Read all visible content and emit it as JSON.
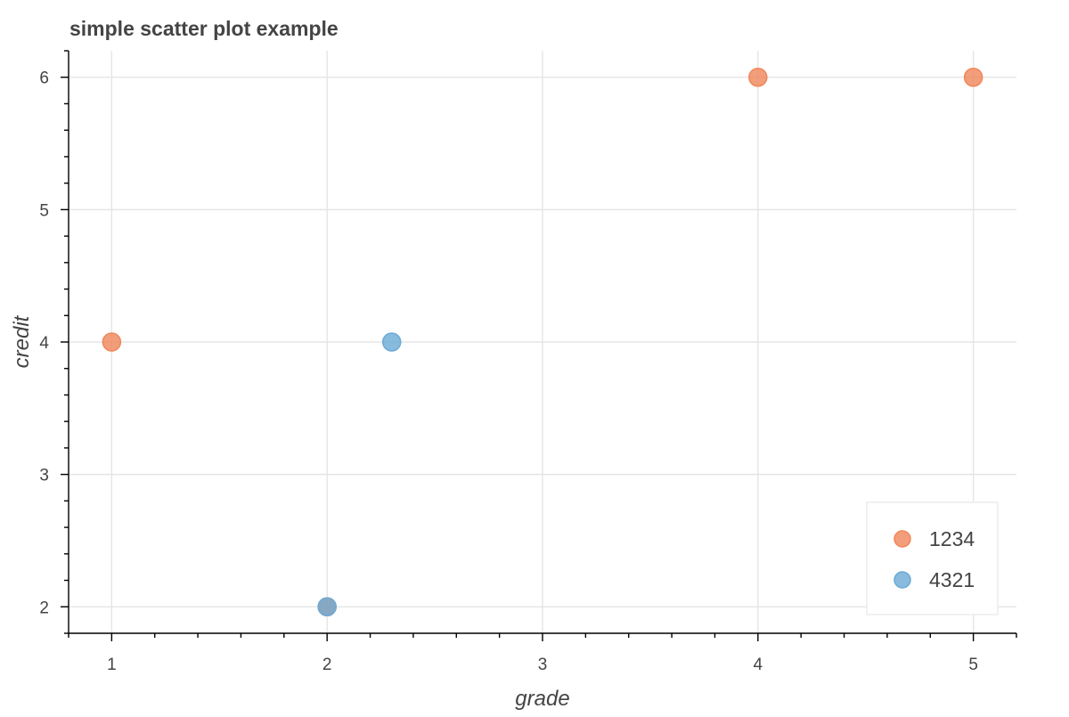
{
  "chart_data": {
    "type": "scatter",
    "title": "simple scatter plot example",
    "xlabel": "grade",
    "ylabel": "credit",
    "xlim": [
      0.8,
      5.2
    ],
    "ylim": [
      1.8,
      6.2
    ],
    "xticks": [
      1,
      2,
      3,
      4,
      5
    ],
    "yticks": [
      2,
      3,
      4,
      5,
      6
    ],
    "grid": true,
    "legend_position": "bottom-right",
    "series": [
      {
        "name": "1234",
        "color": "#f0865a",
        "points": [
          {
            "x": 1,
            "y": 4
          },
          {
            "x": 2,
            "y": 2
          },
          {
            "x": 4,
            "y": 6
          },
          {
            "x": 5,
            "y": 6
          }
        ]
      },
      {
        "name": "4321",
        "color": "#6aaad6",
        "points": [
          {
            "x": 2,
            "y": 2
          },
          {
            "x": 2.3,
            "y": 4
          }
        ]
      }
    ]
  }
}
